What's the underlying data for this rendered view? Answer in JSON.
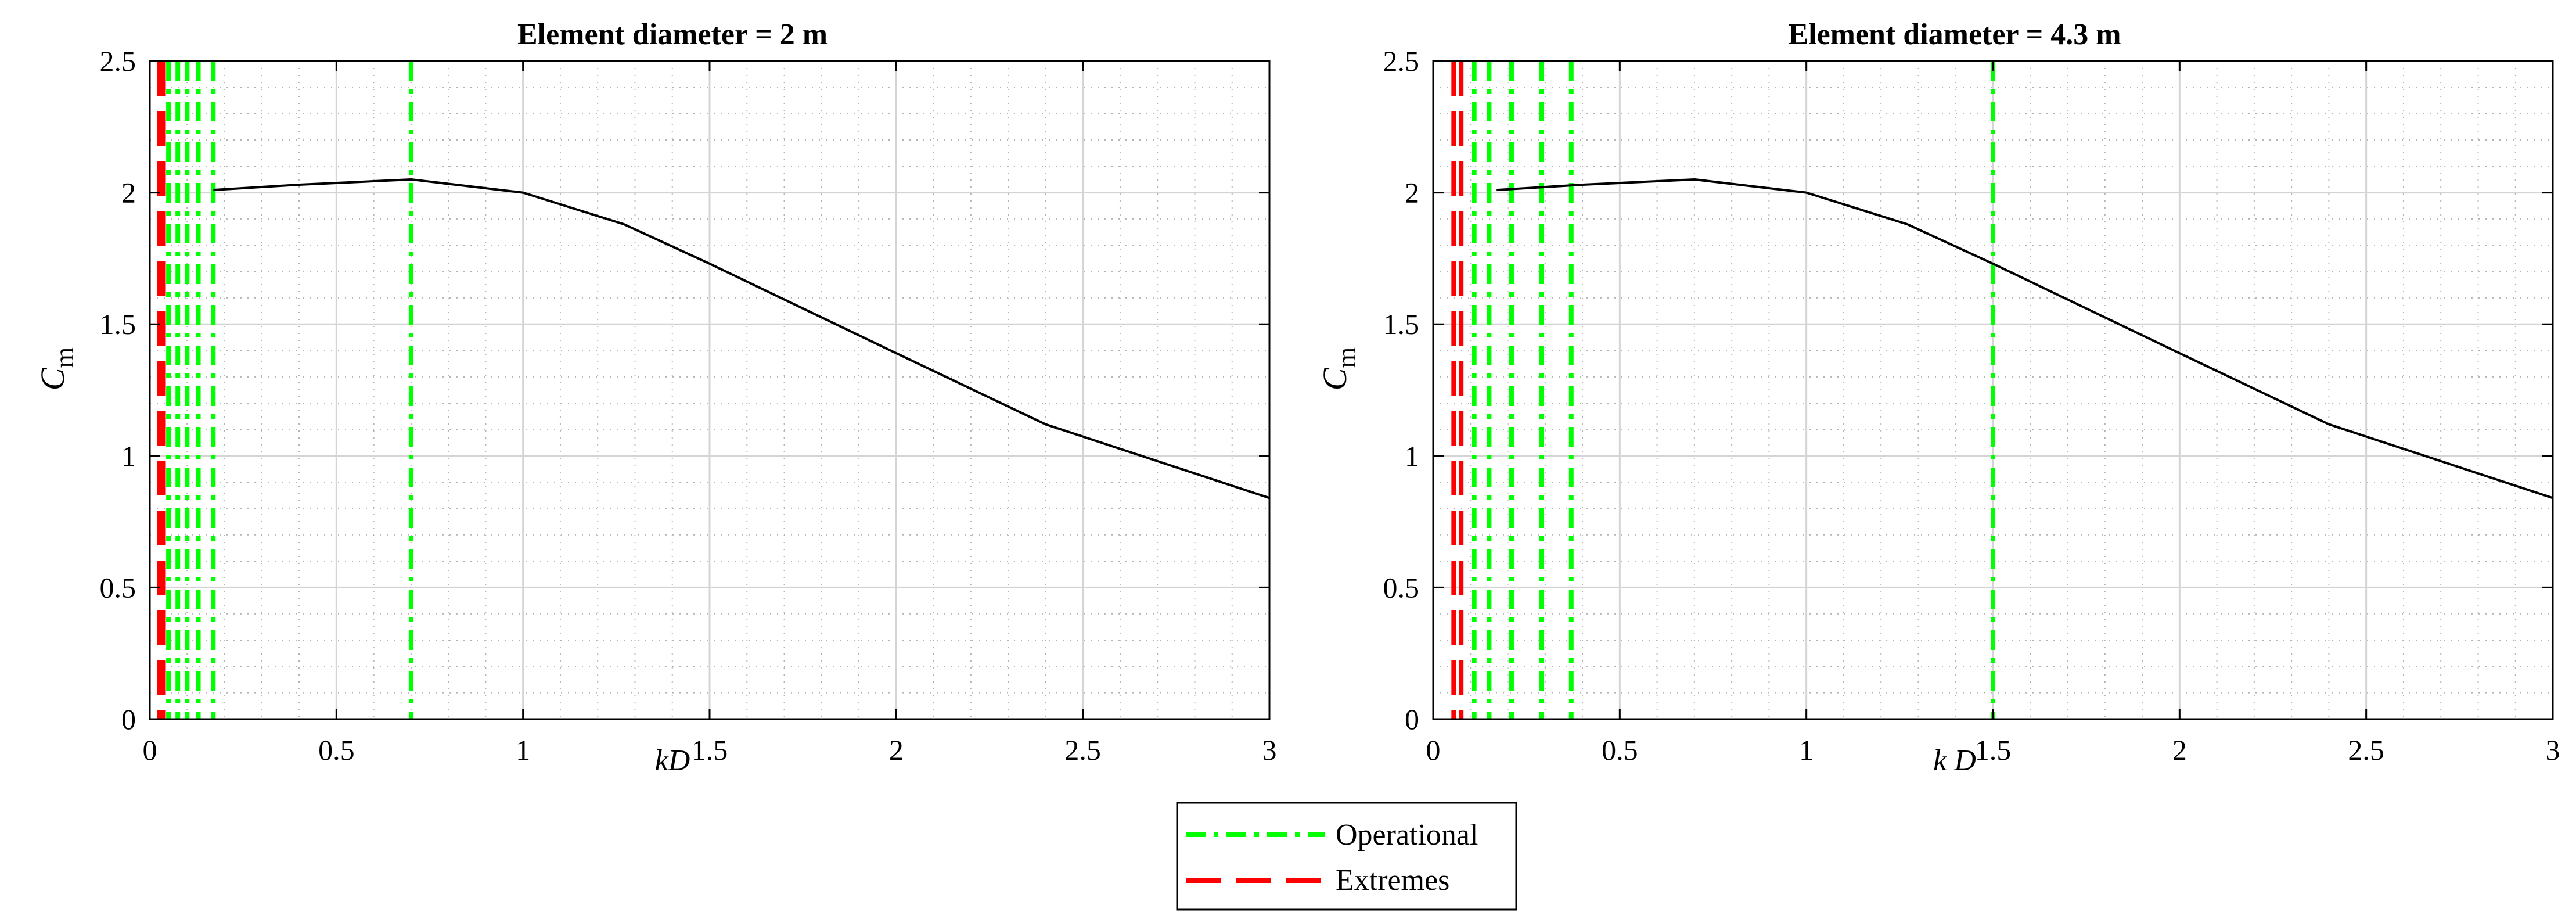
{
  "chart_data": [
    {
      "type": "line",
      "title": "Element diameter = 2 m",
      "xlabel": "kD",
      "ylabel_main": "C",
      "ylabel_sub": "m",
      "xlim": [
        0,
        3
      ],
      "ylim": [
        0,
        2.5
      ],
      "xticks": [
        0,
        0.5,
        1,
        1.5,
        2,
        2.5,
        3
      ],
      "xtick_labels": [
        "0",
        "0.5",
        "1",
        "1.5",
        "2",
        "2.5",
        "3"
      ],
      "yticks": [
        0,
        0.5,
        1,
        1.5,
        2,
        2.5
      ],
      "ytick_labels": [
        "0",
        "0.5",
        "1",
        "1.5",
        "2",
        "2.5"
      ],
      "grid": true,
      "minor_grid": true,
      "series": [
        {
          "name": "Cm",
          "color": "#000000",
          "x": [
            0.17,
            0.4,
            0.7,
            1.0,
            1.27,
            1.5,
            2.0,
            2.4,
            2.7,
            3.0
          ],
          "y": [
            2.01,
            2.03,
            2.05,
            2.0,
            1.88,
            1.73,
            1.39,
            1.12,
            0.98,
            0.84
          ]
        }
      ],
      "operational_lines": [
        0.05,
        0.075,
        0.1,
        0.13,
        0.17,
        0.7
      ],
      "extreme_lines": [
        0.025,
        0.035
      ]
    },
    {
      "type": "line",
      "title": "Element diameter = 4.3 m",
      "xlabel": "k D",
      "ylabel_main": "C",
      "ylabel_sub": "m",
      "xlim": [
        0,
        3
      ],
      "ylim": [
        0,
        2.5
      ],
      "xticks": [
        0,
        0.5,
        1,
        1.5,
        2,
        2.5,
        3
      ],
      "xtick_labels": [
        "0",
        "0.5",
        "1",
        "1.5",
        "2",
        "2.5",
        "3"
      ],
      "yticks": [
        0,
        0.5,
        1,
        1.5,
        2,
        2.5
      ],
      "ytick_labels": [
        "0",
        "0.5",
        "1",
        "1.5",
        "2",
        "2.5"
      ],
      "grid": true,
      "minor_grid": true,
      "series": [
        {
          "name": "Cm",
          "color": "#000000",
          "x": [
            0.17,
            0.4,
            0.7,
            1.0,
            1.27,
            1.5,
            2.0,
            2.4,
            2.7,
            3.0
          ],
          "y": [
            2.01,
            2.03,
            2.05,
            2.0,
            1.88,
            1.73,
            1.39,
            1.12,
            0.98,
            0.84
          ]
        }
      ],
      "operational_lines": [
        0.11,
        0.15,
        0.21,
        0.29,
        0.37,
        1.5
      ],
      "extreme_lines": [
        0.055,
        0.075
      ]
    }
  ],
  "legend": {
    "placement": "bottom-center",
    "entries": [
      {
        "label": "Operational",
        "color": "#00ff00",
        "style": "dash-dot"
      },
      {
        "label": "Extremes",
        "color": "#ff0000",
        "style": "dashed"
      }
    ]
  }
}
